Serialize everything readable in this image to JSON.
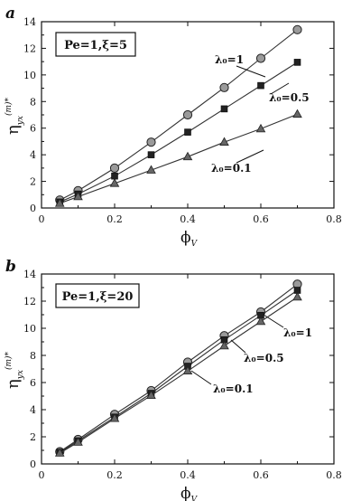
{
  "chart_data": [
    {
      "type": "line",
      "panel_label": "a",
      "annotation": "Pe=1,ξ=5",
      "ylabel": "η",
      "ylabel_sub": "yx",
      "ylabel_sup": "(m)*",
      "xlabel": "ϕ",
      "xlabel_sub": "V",
      "xlim": [
        0,
        0.8
      ],
      "ylim": [
        0,
        14
      ],
      "xticks": [
        "0",
        "0.2",
        "0.4",
        "0.6",
        "0.8"
      ],
      "yticks": [
        "0",
        "2",
        "4",
        "6",
        "8",
        "10",
        "12",
        "14"
      ],
      "x": [
        0.05,
        0.1,
        0.2,
        0.3,
        0.4,
        0.5,
        0.6,
        0.7
      ],
      "series": [
        {
          "label": "λ₀=1",
          "marker": "circle",
          "values": [
            0.6,
            1.3,
            3.0,
            4.95,
            7.0,
            9.05,
            11.25,
            13.4
          ]
        },
        {
          "label": "λ₀=0.5",
          "marker": "square",
          "values": [
            0.45,
            1.05,
            2.4,
            4.0,
            5.7,
            7.45,
            9.2,
            10.95
          ]
        },
        {
          "label": "λ₀=0.1",
          "marker": "triangle",
          "values": [
            0.35,
            0.85,
            1.85,
            2.85,
            3.85,
            4.95,
            5.95,
            7.05
          ]
        }
      ]
    },
    {
      "type": "line",
      "panel_label": "b",
      "annotation": "Pe=1,ξ=20",
      "ylabel": "η",
      "ylabel_sub": "yx",
      "ylabel_sup": "(m)*",
      "xlabel": "ϕ",
      "xlabel_sub": "V",
      "xlim": [
        0,
        0.8
      ],
      "ylim": [
        0,
        14
      ],
      "xticks": [
        "0",
        "0.2",
        "0.4",
        "0.6",
        "0.8"
      ],
      "yticks": [
        "0",
        "2",
        "4",
        "6",
        "8",
        "10",
        "12",
        "14"
      ],
      "x": [
        0.05,
        0.1,
        0.2,
        0.3,
        0.4,
        0.5,
        0.6,
        0.7
      ],
      "series": [
        {
          "label": "λ₀=1",
          "marker": "circle",
          "values": [
            0.9,
            1.8,
            3.65,
            5.4,
            7.5,
            9.45,
            11.2,
            13.25
          ]
        },
        {
          "label": "λ₀=0.5",
          "marker": "square",
          "values": [
            0.85,
            1.7,
            3.45,
            5.2,
            7.2,
            9.15,
            10.95,
            12.8
          ]
        },
        {
          "label": "λ₀=0.1",
          "marker": "triangle",
          "values": [
            0.8,
            1.6,
            3.35,
            5.05,
            6.85,
            8.7,
            10.5,
            12.3
          ]
        }
      ]
    }
  ]
}
